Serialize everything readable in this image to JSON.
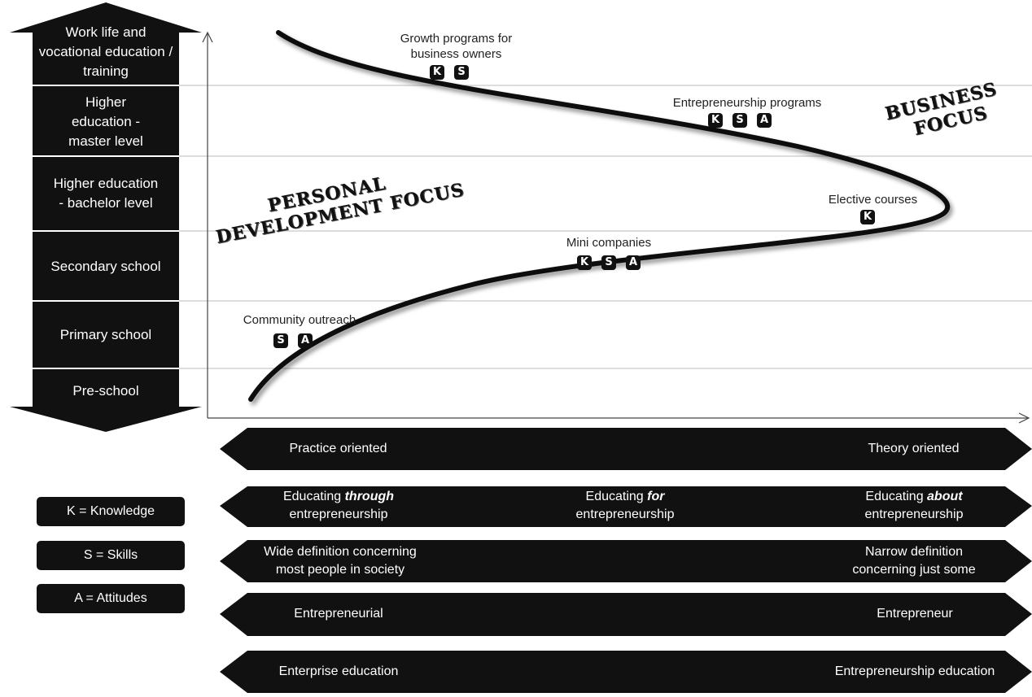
{
  "levels": [
    "Work life and vocational education / training",
    "Higher education - master level",
    "Higher education - bachelor level",
    "Secondary school",
    "Primary school",
    "Pre-school"
  ],
  "annotations": [
    {
      "label": "Growth programs for business owners",
      "badges": [
        "K",
        "S"
      ]
    },
    {
      "label": "Entrepreneurship programs",
      "badges": [
        "K",
        "S",
        "A"
      ]
    },
    {
      "label": "Elective courses",
      "badges": [
        "K"
      ]
    },
    {
      "label": "Mini companies",
      "badges": [
        "K",
        "S",
        "A"
      ]
    },
    {
      "label": "Community outreach",
      "badges": [
        "S",
        "A"
      ]
    }
  ],
  "focus": {
    "personal_line1": "PERSONAL",
    "personal_line2": "DEVELOPMENT FOCUS",
    "business_line1": "BUSINESS",
    "business_line2": "FOCUS"
  },
  "bands": [
    {
      "left": "Practice oriented",
      "middle": "",
      "right": "Theory oriented"
    },
    {
      "left_pre": "Educating ",
      "left_em": "through",
      "left_post": "entrepreneurship",
      "mid_pre": "Educating ",
      "mid_em": "for",
      "mid_post": "entrepreneurship",
      "right_pre": "Educating ",
      "right_em": "about",
      "right_post": "entrepreneurship"
    },
    {
      "left1": "Wide definition concerning",
      "left2": "most people in society",
      "right1": "Narrow definition",
      "right2": "concerning just some"
    },
    {
      "left": "Entrepreneurial",
      "right": "Entrepreneur"
    },
    {
      "left": "Enterprise education",
      "right": "Entrepreneurship education"
    }
  ],
  "legend": [
    "K = Knowledge",
    "S = Skills",
    "A = Attitudes"
  ],
  "colors": {
    "dark": "#111111",
    "grid": "#bbbbbb",
    "axis": "#444444"
  }
}
